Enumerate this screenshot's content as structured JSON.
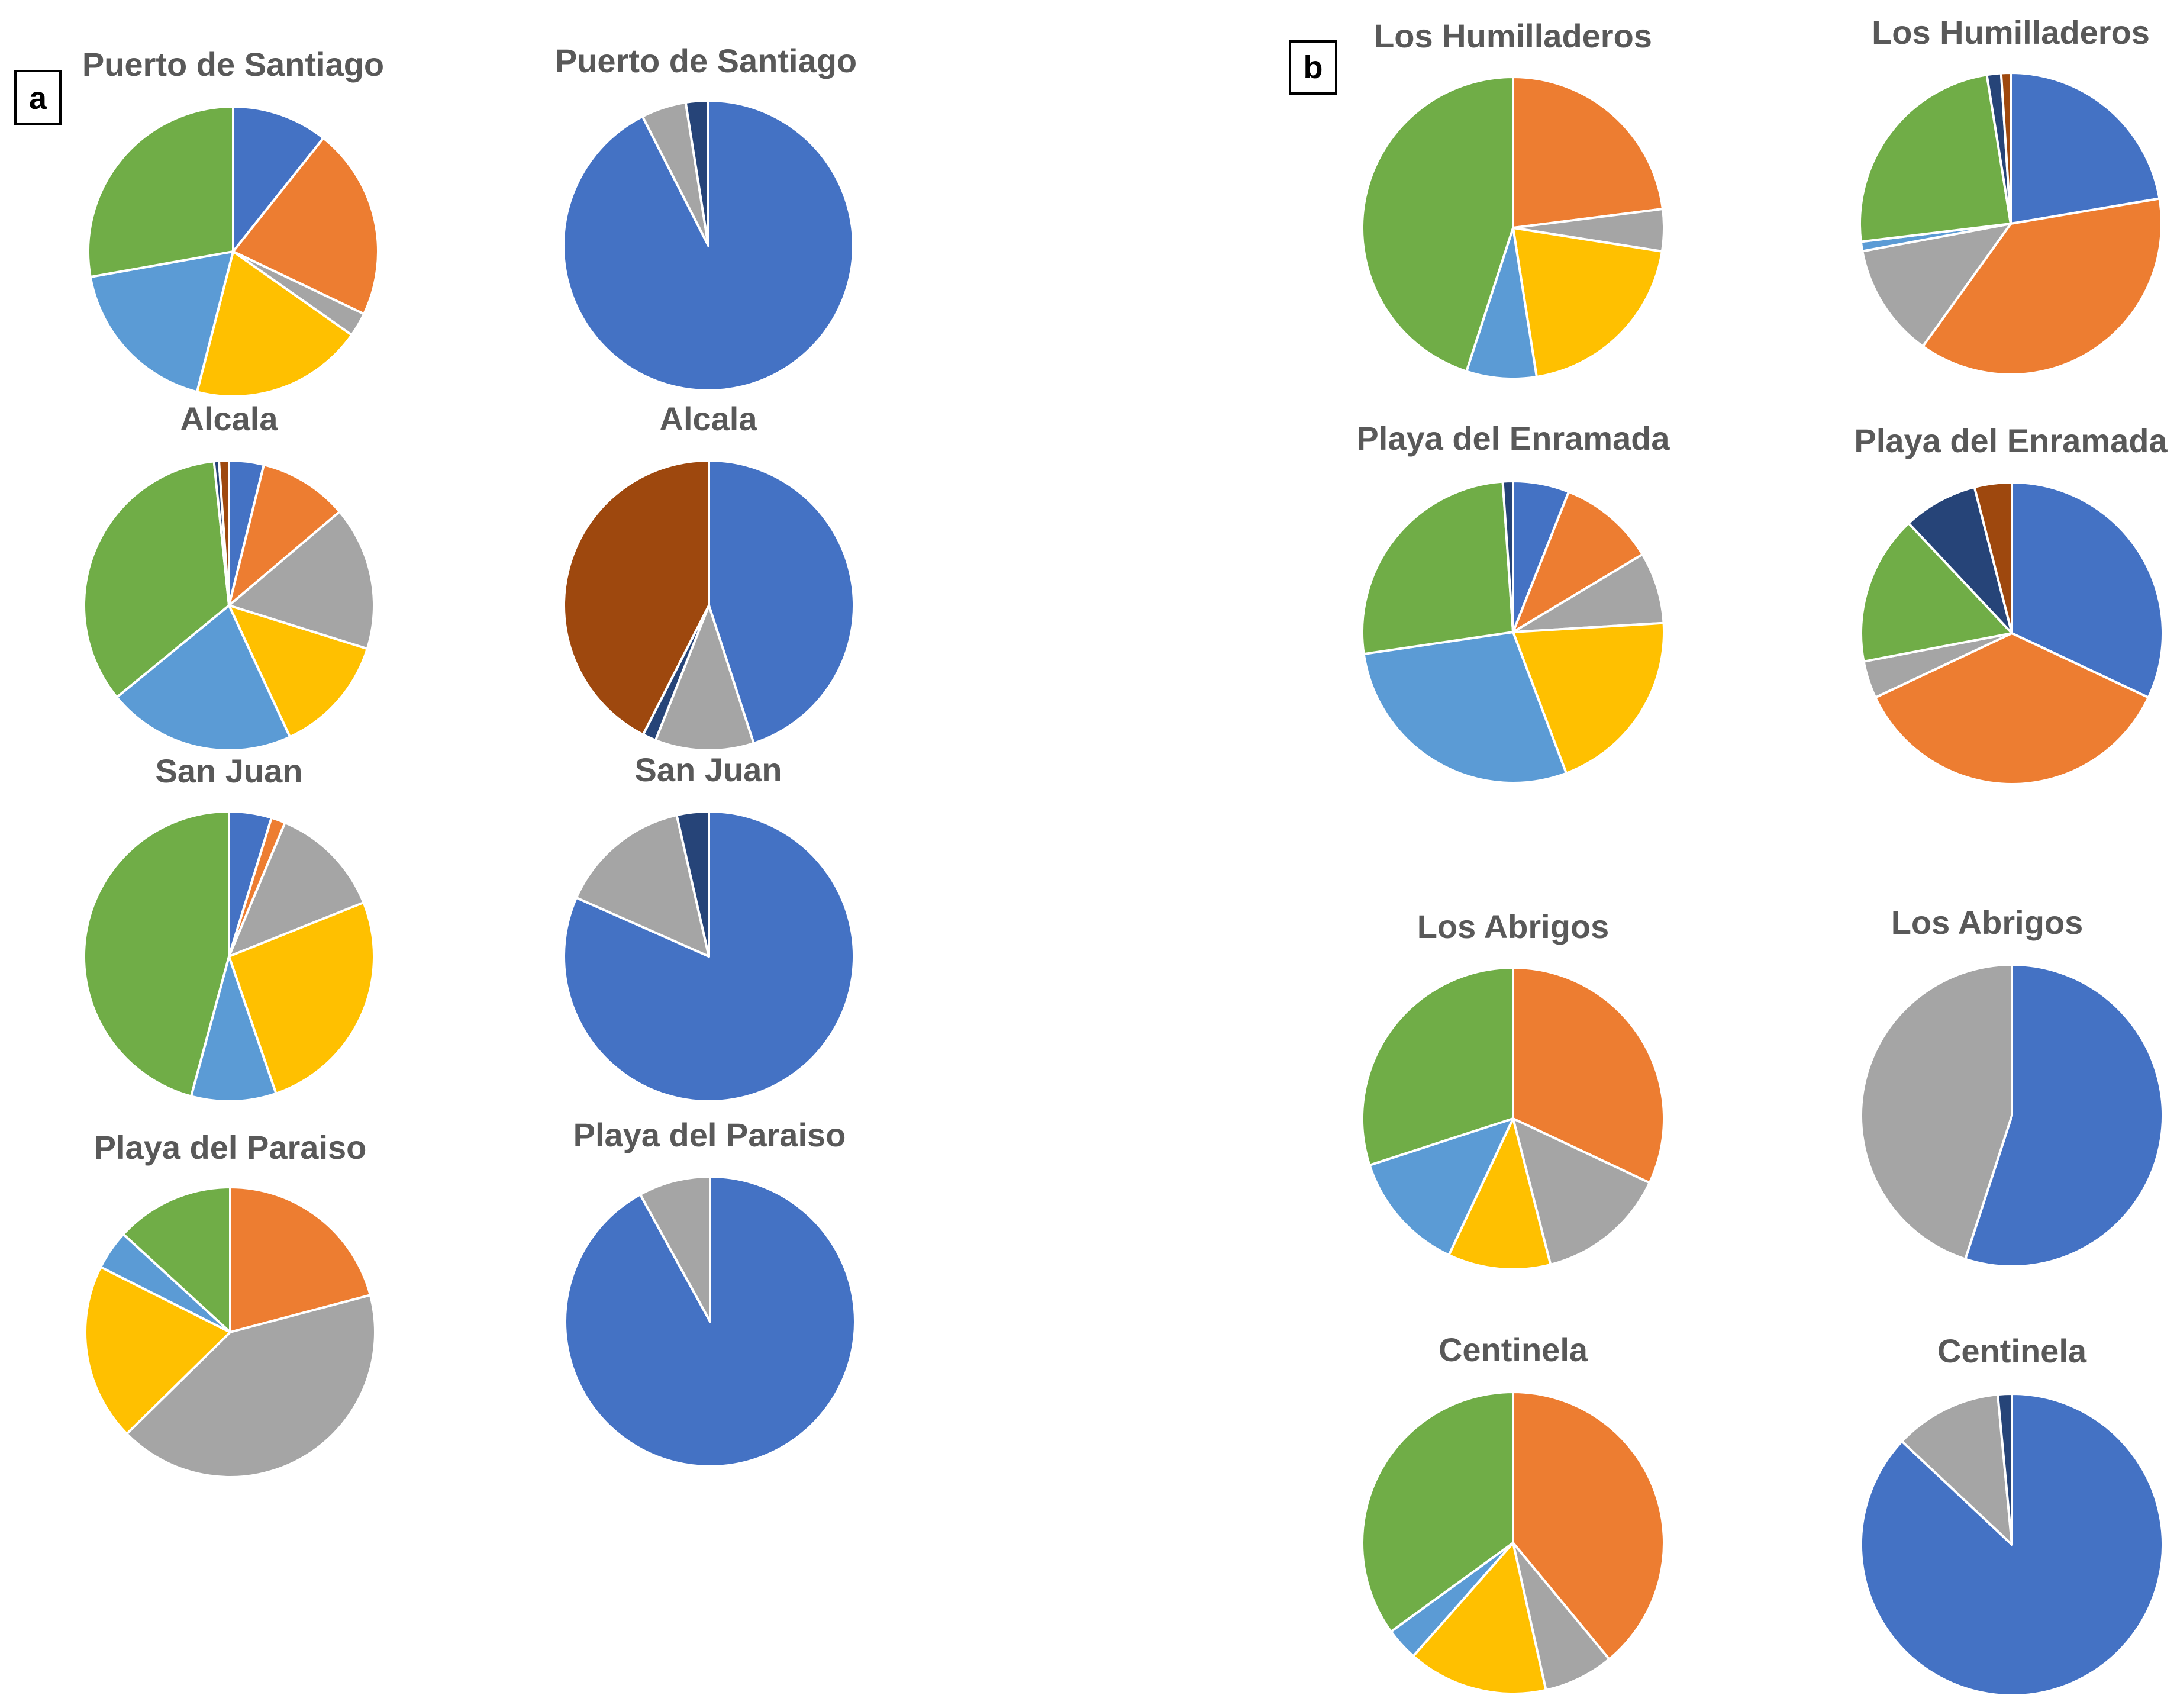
{
  "figure": {
    "panels": [
      {
        "label": "a"
      },
      {
        "label": "b"
      }
    ]
  },
  "colors": {
    "blue": "#4472C4",
    "orange": "#ED7D31",
    "gray": "#A5A5A5",
    "yellow": "#FFC000",
    "lightblue": "#5B9BD5",
    "green": "#70AD47",
    "darkblue": "#264478",
    "brown": "#9E480E"
  },
  "chart_data": [
    {
      "type": "pie",
      "panel": "a",
      "title": "Puerto de Santiago",
      "slices": [
        {
          "color": "blue",
          "value": 10
        },
        {
          "color": "orange",
          "value": 20
        },
        {
          "color": "gray",
          "value": 2.5
        },
        {
          "color": "yellow",
          "value": 18
        },
        {
          "color": "lightblue",
          "value": 17
        },
        {
          "color": "green",
          "value": 26
        }
      ]
    },
    {
      "type": "pie",
      "panel": "a",
      "title": "Puerto de Santiago",
      "slices": [
        {
          "color": "blue",
          "value": 92.5
        },
        {
          "color": "gray",
          "value": 5
        },
        {
          "color": "darkblue",
          "value": 2.5
        }
      ]
    },
    {
      "type": "pie",
      "panel": "a",
      "title": "Alcala",
      "slices": [
        {
          "color": "blue",
          "value": 3.5
        },
        {
          "color": "orange",
          "value": 9
        },
        {
          "color": "gray",
          "value": 14.5
        },
        {
          "color": "yellow",
          "value": 12
        },
        {
          "color": "lightblue",
          "value": 19
        },
        {
          "color": "green",
          "value": 31
        },
        {
          "color": "darkblue",
          "value": 0.5
        },
        {
          "color": "brown",
          "value": 1
        }
      ]
    },
    {
      "type": "pie",
      "panel": "a",
      "title": "Alcala",
      "slices": [
        {
          "color": "blue",
          "value": 45
        },
        {
          "color": "gray",
          "value": 11
        },
        {
          "color": "darkblue",
          "value": 1.5
        },
        {
          "color": "brown",
          "value": 42.5
        }
      ]
    },
    {
      "type": "pie",
      "panel": "a",
      "title": "San Juan",
      "slices": [
        {
          "color": "blue",
          "value": 4.5
        },
        {
          "color": "orange",
          "value": 1.5
        },
        {
          "color": "gray",
          "value": 12
        },
        {
          "color": "yellow",
          "value": 24.5
        },
        {
          "color": "lightblue",
          "value": 9
        },
        {
          "color": "green",
          "value": 43.5
        }
      ]
    },
    {
      "type": "pie",
      "panel": "a",
      "title": "San Juan",
      "slices": [
        {
          "color": "blue",
          "value": 80
        },
        {
          "color": "gray",
          "value": 14.5
        },
        {
          "color": "darkblue",
          "value": 3.5
        }
      ]
    },
    {
      "type": "pie",
      "panel": "a",
      "title": "Playa del Paraiso",
      "slices": [
        {
          "color": "orange",
          "value": 19
        },
        {
          "color": "gray",
          "value": 38
        },
        {
          "color": "yellow",
          "value": 18
        },
        {
          "color": "lightblue",
          "value": 4
        },
        {
          "color": "green",
          "value": 12
        }
      ]
    },
    {
      "type": "pie",
      "panel": "a",
      "title": "Playa del Paraiso",
      "slices": [
        {
          "color": "blue",
          "value": 92
        },
        {
          "color": "gray",
          "value": 8
        }
      ]
    },
    {
      "type": "pie",
      "panel": "b",
      "title": "Los Humilladeros",
      "slices": [
        {
          "color": "orange",
          "value": 23
        },
        {
          "color": "gray",
          "value": 4.5
        },
        {
          "color": "yellow",
          "value": 20
        },
        {
          "color": "lightblue",
          "value": 7.5
        },
        {
          "color": "green",
          "value": 45
        }
      ]
    },
    {
      "type": "pie",
      "panel": "b",
      "title": "Los Humilladeros",
      "slices": [
        {
          "color": "blue",
          "value": 22
        },
        {
          "color": "orange",
          "value": 37
        },
        {
          "color": "gray",
          "value": 12
        },
        {
          "color": "lightblue",
          "value": 1
        },
        {
          "color": "green",
          "value": 24
        },
        {
          "color": "darkblue",
          "value": 1.5
        },
        {
          "color": "brown",
          "value": 1
        }
      ]
    },
    {
      "type": "pie",
      "panel": "b",
      "title": "Playa del Enramada",
      "slices": [
        {
          "color": "blue",
          "value": 5.5
        },
        {
          "color": "orange",
          "value": 9.5
        },
        {
          "color": "gray",
          "value": 7
        },
        {
          "color": "yellow",
          "value": 18.5
        },
        {
          "color": "lightblue",
          "value": 26
        },
        {
          "color": "green",
          "value": 24
        },
        {
          "color": "darkblue",
          "value": 1
        }
      ]
    },
    {
      "type": "pie",
      "panel": "b",
      "title": "Playa del Enramada",
      "slices": [
        {
          "color": "blue",
          "value": 32
        },
        {
          "color": "orange",
          "value": 36
        },
        {
          "color": "gray",
          "value": 4
        },
        {
          "color": "green",
          "value": 16
        },
        {
          "color": "darkblue",
          "value": 8
        },
        {
          "color": "brown",
          "value": 4
        }
      ]
    },
    {
      "type": "pie",
      "panel": "b",
      "title": "Los Abrigos",
      "slices": [
        {
          "color": "orange",
          "value": 32
        },
        {
          "color": "gray",
          "value": 14
        },
        {
          "color": "yellow",
          "value": 11
        },
        {
          "color": "lightblue",
          "value": 13
        },
        {
          "color": "green",
          "value": 30
        }
      ]
    },
    {
      "type": "pie",
      "panel": "b",
      "title": "Los Abrigos",
      "slices": [
        {
          "color": "blue",
          "value": 55
        },
        {
          "color": "gray",
          "value": 45
        }
      ]
    },
    {
      "type": "pie",
      "panel": "b",
      "title": "Centinela",
      "slices": [
        {
          "color": "orange",
          "value": 39
        },
        {
          "color": "gray",
          "value": 7.5
        },
        {
          "color": "yellow",
          "value": 15
        },
        {
          "color": "lightblue",
          "value": 3.5
        },
        {
          "color": "green",
          "value": 35
        }
      ]
    },
    {
      "type": "pie",
      "panel": "b",
      "title": "Centinela",
      "slices": [
        {
          "color": "blue",
          "value": 87
        },
        {
          "color": "gray",
          "value": 11.5
        },
        {
          "color": "darkblue",
          "value": 1.5
        }
      ]
    }
  ]
}
